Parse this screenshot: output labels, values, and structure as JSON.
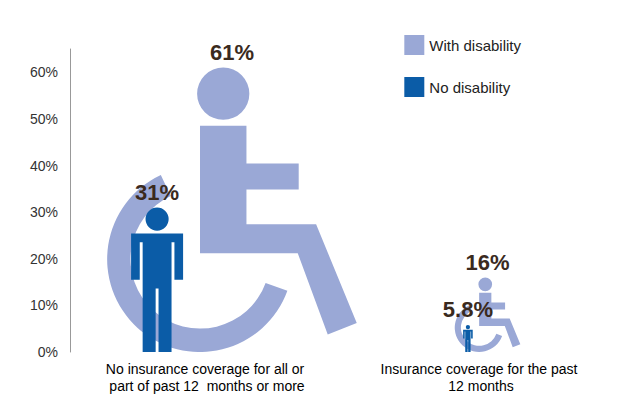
{
  "chart_data": {
    "type": "bar",
    "categories": [
      "No insurance coverage for all or part of past 12  months or more",
      "Insurance coverage for the past 12 months"
    ],
    "series": [
      {
        "name": "With disability",
        "color": "#9aa8d6",
        "marker": "wheelchair",
        "values": [
          61,
          16
        ],
        "value_labels": [
          "61%",
          "16%"
        ]
      },
      {
        "name": "No disability",
        "color": "#0b5ca7",
        "marker": "person",
        "values": [
          31,
          5.8
        ],
        "value_labels": [
          "31%",
          "5.8%"
        ]
      }
    ],
    "ylim": [
      0,
      65
    ],
    "yticks": [
      {
        "value": 0,
        "label": "0%"
      },
      {
        "value": 10,
        "label": "10%"
      },
      {
        "value": 20,
        "label": "20%"
      },
      {
        "value": 30,
        "label": "30%"
      },
      {
        "value": 40,
        "label": "40%"
      },
      {
        "value": 50,
        "label": "50%"
      },
      {
        "value": 60,
        "label": "60%"
      }
    ],
    "grid": false,
    "legend": "top-right",
    "data_labels": true
  }
}
